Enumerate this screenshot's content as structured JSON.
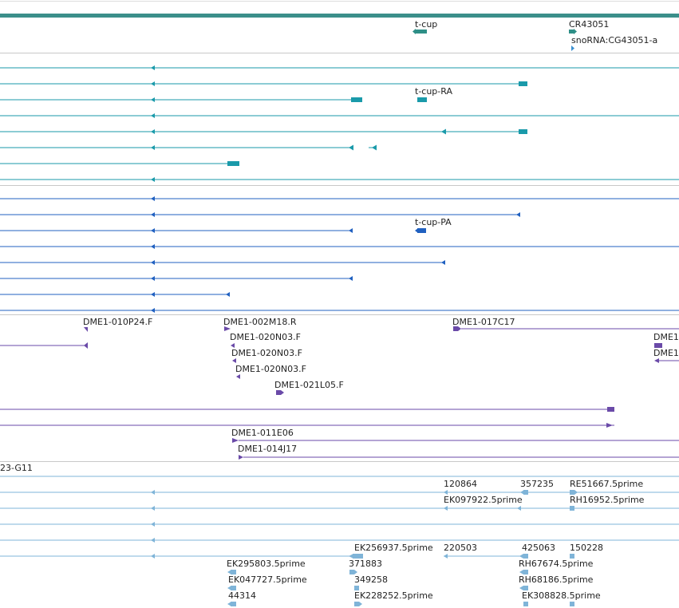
{
  "colors": {
    "header_bar": "#3b8f8a",
    "gene": "#2e8f87",
    "teal": "#1a9aaa",
    "blue": "#2060c0",
    "purple": "#6a4aa8",
    "light_blue": "#7fb4d8",
    "separator": "#c8c8c8"
  },
  "tracks": {
    "genes": {
      "labels": [
        "t-cup",
        "CR43051",
        "snoRNA:CG43051-a"
      ]
    },
    "transcripts": {
      "labels": [
        "t-cup-RA"
      ]
    },
    "proteins": {
      "labels": [
        "t-cup-PA"
      ]
    },
    "clones": {
      "labels": [
        "DME1-010P24.F",
        "DME1-002M18.R",
        "DME1-017C17",
        "DME1-020N03.F",
        "DME1-020N03.F",
        "DME1-020N03.F",
        "DME1-021L05.F",
        "DME1",
        "DME1",
        "DME1-011E06",
        "DME1-014J17"
      ]
    },
    "ests": {
      "labels": [
        "23-G11",
        "120864",
        "357235",
        "RE51667.5prime",
        "EK097922.5prime",
        "RH16952.5prime",
        "EK256937.5prime",
        "220503",
        "425063",
        "150228",
        "EK295803.5prime",
        "371883",
        "RH67674.5prime",
        "EK047727.5prime",
        "349258",
        "RH68186.5prime",
        "44314",
        "EK228252.5prime",
        "EK308828.5prime"
      ]
    }
  }
}
